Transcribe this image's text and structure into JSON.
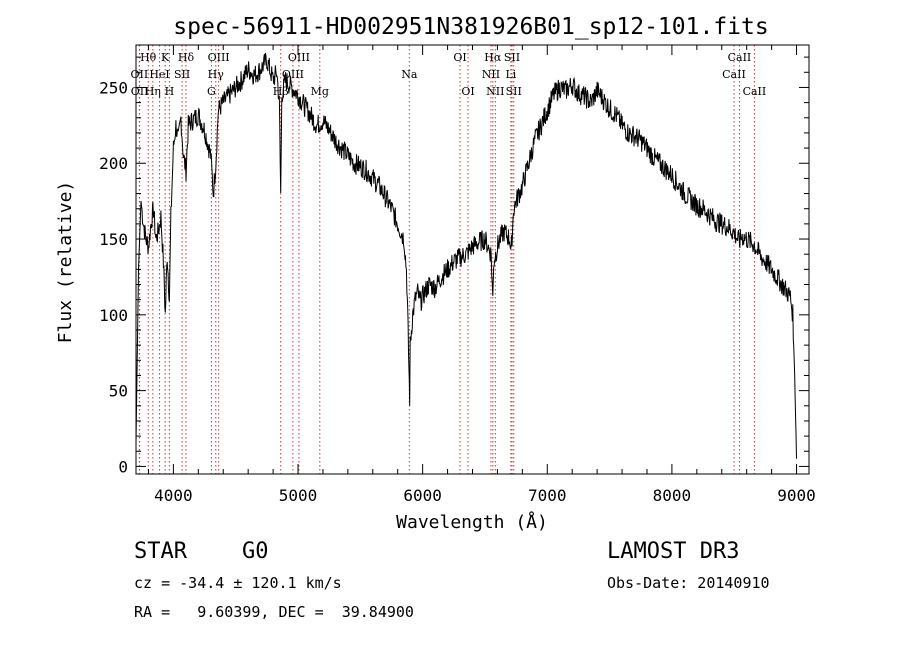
{
  "chart_data": {
    "type": "line",
    "title": "spec-56911-HD002951N381926B01_sp12-101.fits",
    "xlabel": "Wavelength (Å)",
    "ylabel": "Flux (relative)",
    "xlim": [
      3700,
      9100
    ],
    "ylim": [
      -5,
      278
    ],
    "x_ticks": [
      4000,
      5000,
      6000,
      7000,
      8000,
      9000
    ],
    "y_ticks": [
      0,
      50,
      100,
      150,
      200,
      250
    ],
    "grid": false,
    "series": [
      {
        "name": "flux",
        "x": [
          3700,
          3720,
          3740,
          3760,
          3780,
          3800,
          3820,
          3840,
          3860,
          3880,
          3900,
          3920,
          3935,
          3950,
          3968,
          3980,
          4000,
          4020,
          4040,
          4060,
          4080,
          4101,
          4120,
          4150,
          4200,
          4250,
          4300,
          4320,
          4340,
          4360,
          4400,
          4450,
          4500,
          4550,
          4600,
          4650,
          4700,
          4750,
          4800,
          4830,
          4850,
          4861,
          4870,
          4900,
          4950,
          5000,
          5050,
          5100,
          5150,
          5200,
          5250,
          5300,
          5350,
          5400,
          5450,
          5500,
          5550,
          5600,
          5650,
          5700,
          5750,
          5800,
          5850,
          5870,
          5880,
          5890,
          5896,
          5900,
          5910,
          5920,
          5940,
          5960,
          5980,
          6000,
          6050,
          6100,
          6150,
          6200,
          6250,
          6300,
          6350,
          6400,
          6450,
          6500,
          6550,
          6563,
          6570,
          6600,
          6620,
          6650,
          6700,
          6710,
          6730,
          6750,
          6800,
          6850,
          6900,
          6950,
          7000,
          7050,
          7100,
          7150,
          7200,
          7250,
          7300,
          7350,
          7400,
          7450,
          7500,
          7550,
          7600,
          7650,
          7700,
          7750,
          7800,
          7850,
          7900,
          7950,
          8000,
          8050,
          8100,
          8150,
          8200,
          8250,
          8300,
          8350,
          8400,
          8450,
          8500,
          8542,
          8560,
          8600,
          8662,
          8700,
          8750,
          8800,
          8850,
          8900,
          8950,
          8970,
          8985,
          9000
        ],
        "y": [
          15,
          130,
          175,
          160,
          150,
          145,
          160,
          170,
          150,
          155,
          165,
          135,
          100,
          140,
          110,
          165,
          210,
          225,
          215,
          230,
          205,
          195,
          225,
          228,
          232,
          222,
          205,
          180,
          200,
          235,
          240,
          245,
          250,
          255,
          262,
          258,
          262,
          268,
          255,
          260,
          240,
          180,
          245,
          255,
          250,
          245,
          238,
          232,
          225,
          228,
          222,
          215,
          210,
          205,
          200,
          198,
          195,
          190,
          185,
          178,
          170,
          160,
          150,
          130,
          100,
          65,
          45,
          80,
          90,
          100,
          110,
          115,
          108,
          112,
          120,
          118,
          125,
          130,
          135,
          138,
          140,
          145,
          148,
          150,
          140,
          110,
          135,
          145,
          150,
          155,
          150,
          140,
          170,
          175,
          185,
          200,
          215,
          225,
          235,
          245,
          250,
          248,
          252,
          246,
          244,
          240,
          248,
          242,
          236,
          232,
          225,
          220,
          218,
          215,
          210,
          204,
          200,
          196,
          192,
          186,
          180,
          176,
          172,
          170,
          166,
          162,
          160,
          158,
          154,
          148,
          152,
          150,
          146,
          140,
          135,
          130,
          124,
          118,
          112,
          100,
          60,
          5
        ]
      }
    ],
    "line_marks": [
      {
        "label": "Hθ",
        "x": 3798,
        "row": 1
      },
      {
        "label": "OII",
        "x": 3727,
        "row": 2
      },
      {
        "label": "OII",
        "x": 3729,
        "row": 3
      },
      {
        "label": "K",
        "x": 3934,
        "row": 1
      },
      {
        "label": "HeI",
        "x": 3889,
        "row": 2
      },
      {
        "label": "Hη",
        "x": 3835,
        "row": 3
      },
      {
        "label": "H",
        "x": 3968,
        "row": 3
      },
      {
        "label": "Hδ",
        "x": 4101,
        "row": 1
      },
      {
        "label": "SII",
        "x": 4070,
        "row": 2
      },
      {
        "label": "OIII",
        "x": 4363,
        "row": 1
      },
      {
        "label": "Hγ",
        "x": 4340,
        "row": 2
      },
      {
        "label": "G",
        "x": 4305,
        "row": 3
      },
      {
        "label": "OIII",
        "x": 5007,
        "row": 1
      },
      {
        "label": "OIII",
        "x": 4959,
        "row": 2
      },
      {
        "label": "Hβ",
        "x": 4861,
        "row": 3
      },
      {
        "label": "Mg",
        "x": 5175,
        "row": 3
      },
      {
        "label": "Na",
        "x": 5893,
        "row": 2
      },
      {
        "label": "OI",
        "x": 6300,
        "row": 1
      },
      {
        "label": "OI",
        "x": 6364,
        "row": 3
      },
      {
        "label": "Hα",
        "x": 6563,
        "row": 1
      },
      {
        "label": "SII",
        "x": 6717,
        "row": 1
      },
      {
        "label": "NII",
        "x": 6548,
        "row": 2
      },
      {
        "label": "Li",
        "x": 6708,
        "row": 2
      },
      {
        "label": "NII",
        "x": 6583,
        "row": 3
      },
      {
        "label": "SII",
        "x": 6731,
        "row": 3
      },
      {
        "label": "CaII",
        "x": 8542,
        "row": 1
      },
      {
        "label": "CaII",
        "x": 8498,
        "row": 2
      },
      {
        "label": "CaII",
        "x": 8662,
        "row": 3
      }
    ]
  },
  "info": {
    "object_class": "STAR",
    "subclass": "G0",
    "survey": "LAMOST DR3",
    "cz_line": "cz = -34.4 ± 120.1 km/s",
    "obs_date_line": "Obs-Date: 20140910",
    "coords_line": "RA =   9.60399, DEC =  39.84900"
  },
  "colors": {
    "line_marker": "#e03030",
    "spectrum": "#000000",
    "axes": "#000000"
  }
}
